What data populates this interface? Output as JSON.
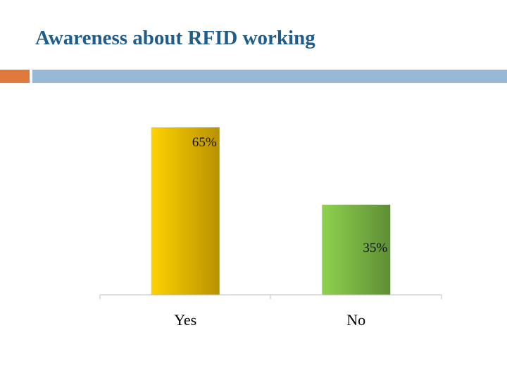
{
  "slide": {
    "title": "Awareness about RFID working",
    "accent_colors": {
      "orange": "#e07a3c",
      "blue": "#96b8d4",
      "title": "#1f5d8c"
    }
  },
  "chart_data": {
    "type": "bar",
    "categories": [
      "Yes",
      "No"
    ],
    "values": [
      65,
      35
    ],
    "value_labels": [
      "65%",
      "35%"
    ],
    "ylim": [
      0,
      65
    ],
    "grid": false,
    "legend": "none",
    "bar_colors": [
      {
        "light": "#ffd200",
        "dark": "#b89200"
      },
      {
        "light": "#8fd24f",
        "dark": "#5e8e34"
      }
    ]
  }
}
